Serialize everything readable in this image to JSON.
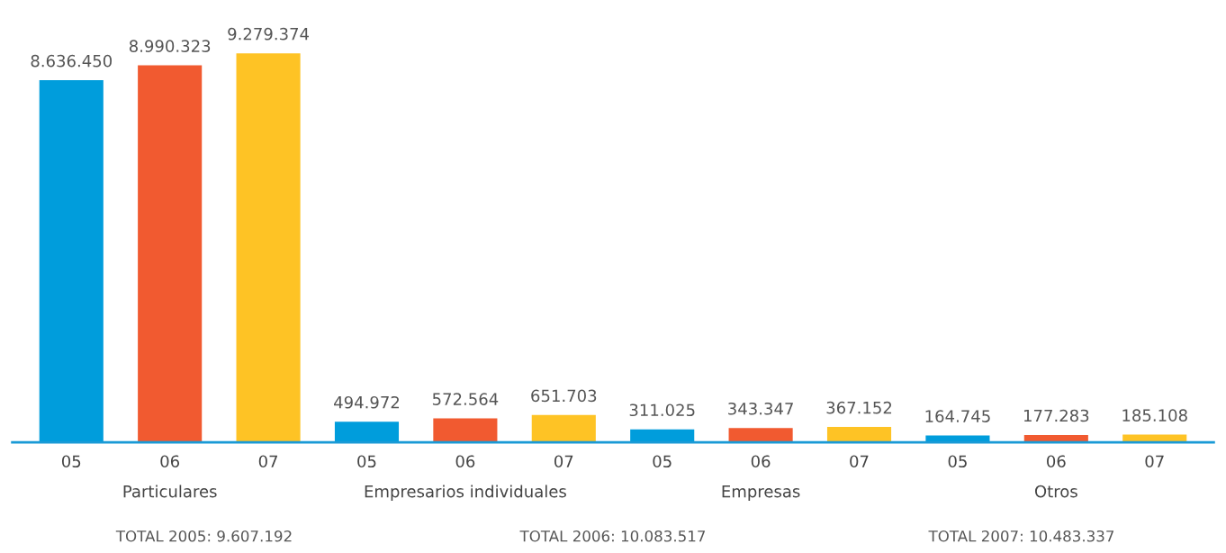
{
  "chart_data": {
    "type": "bar",
    "categories": [
      "05",
      "06",
      "07",
      "05",
      "06",
      "07",
      "05",
      "06",
      "07",
      "05",
      "06",
      "07"
    ],
    "values": [
      8636450,
      8990323,
      9279374,
      494972,
      572564,
      651703,
      311025,
      343347,
      367152,
      164745,
      177283,
      185108
    ],
    "colors": [
      "#009ddc",
      "#f15a30",
      "#fec325",
      "#009ddc",
      "#f15a30",
      "#fec325",
      "#009ddc",
      "#f15a30",
      "#fec325",
      "#009ddc",
      "#f15a30",
      "#fec325"
    ],
    "value_labels": [
      "8.636.450",
      "8.990.323",
      "9.279.374",
      "494.972",
      "572.564",
      "651.703",
      "311.025",
      "343.347",
      "367.152",
      "164.745",
      "177.283",
      "185.108"
    ],
    "annotations": [
      "Particulares",
      "Empresarios individuales",
      "Empresas",
      "Otros",
      "TOTAL 2005: 9.607.192",
      "TOTAL 2006: 10.083.517",
      "TOTAL 2007: 10.483.337"
    ],
    "tick_labels": "x",
    "grid": false
  }
}
